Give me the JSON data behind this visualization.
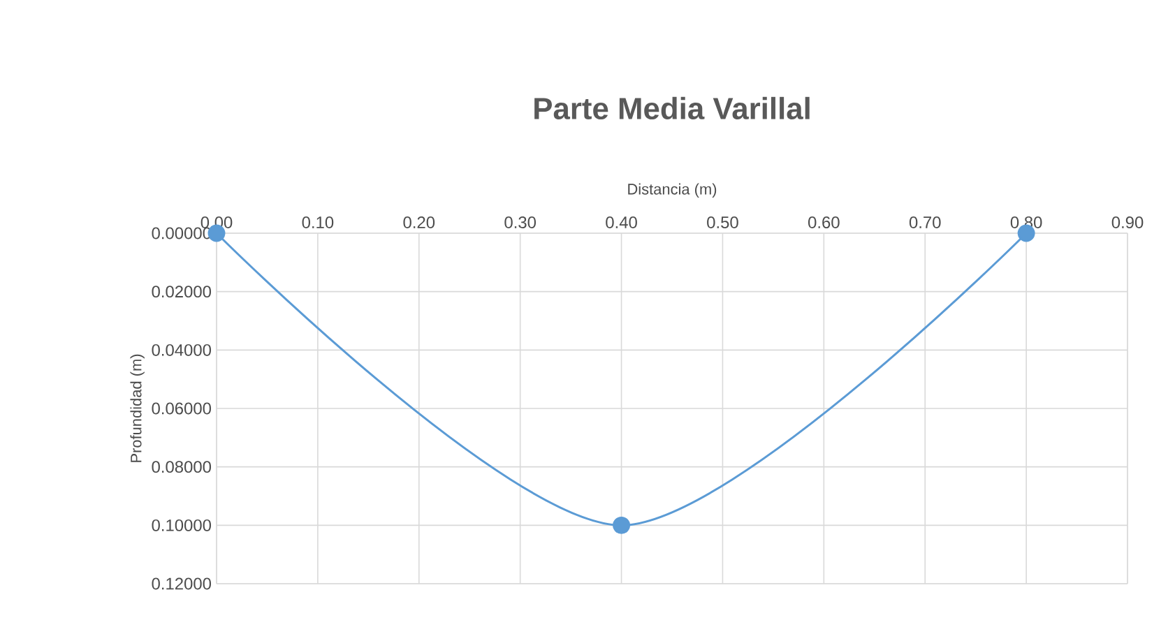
{
  "chart_data": {
    "type": "line",
    "title": "Parte Media Varillal",
    "xlabel": "Distancia (m)",
    "ylabel": "Profundidad (m)",
    "x": [
      0,
      0.4,
      0.8
    ],
    "series": [
      {
        "color": "#5b9bd5",
        "values": [
          0,
          0.1,
          0
        ]
      }
    ],
    "xlim": [
      0,
      0.9
    ],
    "xticks": [
      {
        "value": 0,
        "label": "0.00"
      },
      {
        "value": 0.1,
        "label": "0.10"
      },
      {
        "value": 0.2,
        "label": "0.20"
      },
      {
        "value": 0.3,
        "label": "0.30"
      },
      {
        "value": 0.4,
        "label": "0.40"
      },
      {
        "value": 0.5,
        "label": "0.50"
      },
      {
        "value": 0.6,
        "label": "0.60"
      },
      {
        "value": 0.7,
        "label": "0.70"
      },
      {
        "value": 0.8,
        "label": "0.80"
      },
      {
        "value": 0.9,
        "label": "0.90"
      }
    ],
    "ylim": [
      0.12,
      0
    ],
    "yticks": [
      {
        "value": 0,
        "label": "0.00000"
      },
      {
        "value": 0.02,
        "label": "0.02000"
      },
      {
        "value": 0.04,
        "label": "0.04000"
      },
      {
        "value": 0.06,
        "label": "0.06000"
      },
      {
        "value": 0.08,
        "label": "0.08000"
      },
      {
        "value": 0.1,
        "label": "0.10000"
      },
      {
        "value": 0.12,
        "label": "0.12000"
      }
    ],
    "grid": true,
    "marker": "circle",
    "line_style": "solid"
  }
}
